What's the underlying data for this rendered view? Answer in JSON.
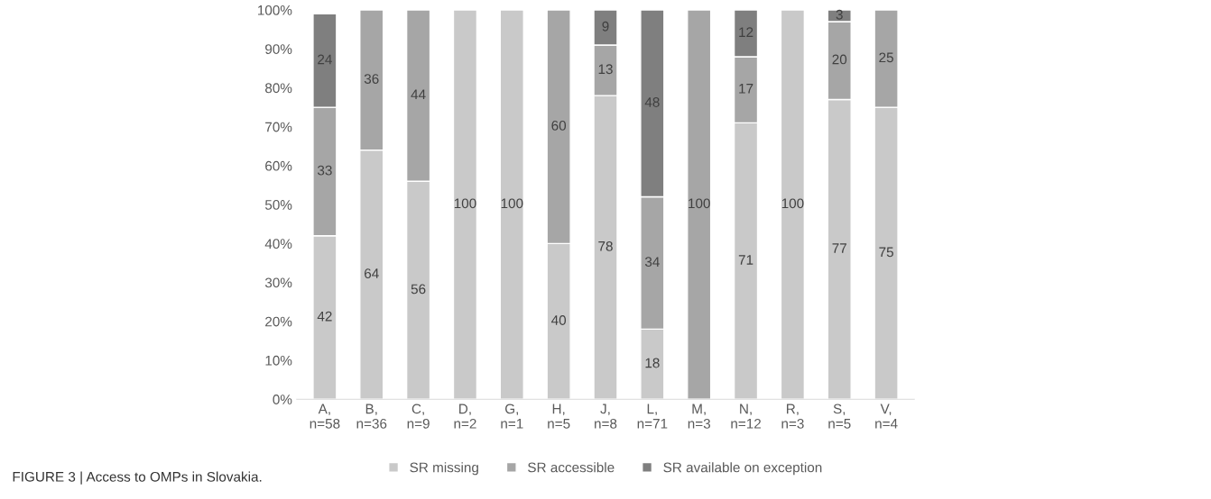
{
  "chart_data": {
    "type": "bar",
    "stacked": true,
    "categories": [
      "A,\nn=58",
      "B,\nn=36",
      "C,\nn=9",
      "D,\nn=2",
      "G,\nn=1",
      "H,\nn=5",
      "J,\nn=8",
      "L,\nn=71",
      "M,\nn=3",
      "N,\nn=12",
      "R,\nn=3",
      "S,\nn=5",
      "V,\nn=4"
    ],
    "series": [
      {
        "name": "SR missing",
        "color": "#c9c9c9",
        "values": [
          42,
          64,
          56,
          100,
          100,
          40,
          78,
          18,
          null,
          71,
          100,
          77,
          75
        ]
      },
      {
        "name": "SR accessible",
        "color": "#a6a6a6",
        "values": [
          33,
          36,
          44,
          null,
          null,
          60,
          13,
          34,
          100,
          17,
          null,
          20,
          25
        ]
      },
      {
        "name": "SR available on exception",
        "color": "#7f7f7f",
        "values": [
          24,
          null,
          null,
          null,
          null,
          null,
          9,
          48,
          null,
          12,
          null,
          3,
          null
        ]
      }
    ],
    "ylim": [
      0,
      100
    ],
    "yticks": [
      {
        "value": 0,
        "label": "0%"
      },
      {
        "value": 10,
        "label": "10%"
      },
      {
        "value": 20,
        "label": "20%"
      },
      {
        "value": 30,
        "label": "30%"
      },
      {
        "value": 40,
        "label": "40%"
      },
      {
        "value": 50,
        "label": "50%"
      },
      {
        "value": 60,
        "label": "60%"
      },
      {
        "value": 70,
        "label": "70%"
      },
      {
        "value": 80,
        "label": "80%"
      },
      {
        "value": 90,
        "label": "90%"
      },
      {
        "value": 100,
        "label": "100%"
      }
    ],
    "data_labels": true,
    "grid": false,
    "legend": "bottom",
    "annotations": [
      "FIGURE 3 | Access to OMPs in Slovakia."
    ]
  }
}
